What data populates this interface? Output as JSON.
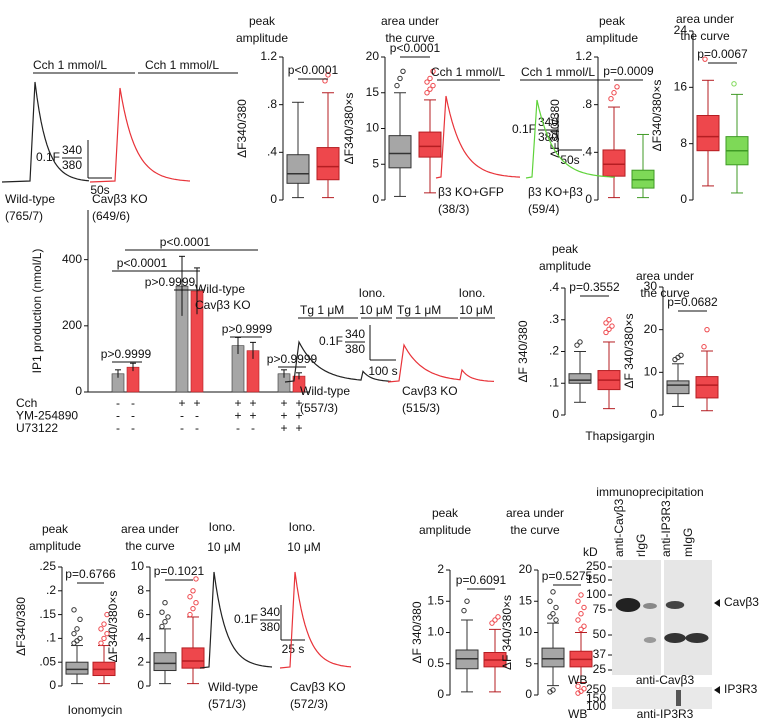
{
  "chart_data": [
    {
      "type": "box",
      "title": [
        "peak",
        "amplitude"
      ],
      "ylabel": "ΔF340/380",
      "ylim": [
        0,
        1.2
      ],
      "yticks": [
        0,
        {
          "value": 0.4,
          "label": ".4"
        },
        {
          "value": 0.8,
          "label": ".8"
        },
        {
          "value": 1.2,
          "label": "1.2"
        }
      ],
      "p_value": "p<0.0001",
      "series": [
        {
          "color": "#a6a6a6",
          "whisker_low": 0.02,
          "q1": 0.14,
          "median": 0.22,
          "q3": 0.38,
          "whisker_high": 0.82,
          "outliers": []
        },
        {
          "color": "#ee474c",
          "whisker_low": 0.02,
          "q1": 0.17,
          "median": 0.28,
          "q3": 0.44,
          "whisker_high": 0.9,
          "outliers": [
            1.0,
            1.05
          ]
        }
      ]
    },
    {
      "type": "box",
      "title": [
        "area under",
        "the curve"
      ],
      "ylabel": "ΔF340/380×s",
      "ylim": [
        0,
        20
      ],
      "yticks": [
        0,
        5,
        10,
        15,
        20
      ],
      "p_value": "p<0.0001",
      "series": [
        {
          "color": "#a6a6a6",
          "whisker_low": 0.5,
          "q1": 4.5,
          "median": 6.5,
          "q3": 9,
          "whisker_high": 15,
          "outliers": [
            16,
            17,
            18
          ]
        },
        {
          "color": "#ee474c",
          "whisker_low": 1,
          "q1": 6,
          "median": 7.5,
          "q3": 9.5,
          "whisker_high": 14,
          "outliers": [
            15,
            15.5,
            16,
            16.5,
            17,
            18
          ]
        }
      ]
    },
    {
      "type": "box",
      "title": [
        "peak",
        "amplitude"
      ],
      "ylabel": "ΔF340/380",
      "ylim": [
        0,
        1.2
      ],
      "yticks": [
        0,
        {
          "value": 0.4,
          "label": ".4"
        },
        {
          "value": 0.8,
          "label": ".8"
        },
        {
          "value": 1.2,
          "label": "1.2"
        }
      ],
      "p_value": "p=0.0009",
      "series": [
        {
          "color": "#ee474c",
          "whisker_low": 0.02,
          "q1": 0.2,
          "median": 0.3,
          "q3": 0.42,
          "whisker_high": 0.78,
          "outliers": [
            0.85,
            0.9,
            0.95
          ]
        },
        {
          "color": "#7ed957",
          "whisker_low": 0.02,
          "q1": 0.1,
          "median": 0.17,
          "q3": 0.25,
          "whisker_high": 0.55,
          "outliers": []
        }
      ]
    },
    {
      "type": "box",
      "title": [
        "area under",
        "the curve"
      ],
      "ylabel": "ΔF340/380×s",
      "ylim": [
        0,
        24
      ],
      "yticks": [
        0,
        8,
        16,
        24
      ],
      "p_value": "p=0.0067",
      "series": [
        {
          "color": "#ee474c",
          "whisker_low": 2,
          "q1": 7,
          "median": 9,
          "q3": 12,
          "whisker_high": 17,
          "outliers": [
            20
          ]
        },
        {
          "color": "#7ed957",
          "whisker_low": 1,
          "q1": 5,
          "median": 7,
          "q3": 9,
          "whisker_high": 15,
          "outliers": [
            16.5
          ]
        }
      ]
    },
    {
      "type": "bar",
      "ylabel": "IP1 production (nmol/L)",
      "ylim": [
        0,
        550
      ],
      "yticks": [
        0,
        200,
        400
      ],
      "series": [
        {
          "name": "Wild-type",
          "color": "#a6a6a6",
          "values": [
            55,
            320,
            140,
            55
          ],
          "errors": [
            12,
            90,
            25,
            12
          ]
        },
        {
          "name": "Cavβ3 KO",
          "color": "#ee474c",
          "values": [
            75,
            305,
            125,
            48
          ],
          "errors": [
            12,
            70,
            25,
            10
          ]
        }
      ],
      "annotations": [
        "p>0.9999",
        "p<0.0001",
        "p>0.9999",
        "p<0.0001",
        "p>0.9999",
        "p>0.9999"
      ],
      "conditions": [
        {
          "label": "Cch",
          "marks": [
            "-",
            "-",
            "+",
            "+",
            "+",
            "+",
            "+",
            "+"
          ]
        },
        {
          "label": "YM-254890",
          "marks": [
            "-",
            "-",
            "-",
            "-",
            "+",
            "+",
            "+",
            "+"
          ]
        },
        {
          "label": "U73122",
          "marks": [
            "-",
            "-",
            "-",
            "-",
            "-",
            "-",
            "+",
            "+"
          ]
        }
      ]
    },
    {
      "type": "box",
      "title": [
        "peak",
        "amplitude"
      ],
      "ylabel": "ΔF 340/380",
      "ylim": [
        0,
        0.4
      ],
      "yticks": [
        0,
        {
          "value": 0.1,
          "label": ".1"
        },
        {
          "value": 0.2,
          "label": ".2"
        },
        {
          "value": 0.3,
          "label": ".3"
        },
        {
          "value": 0.4,
          "label": ".4"
        }
      ],
      "p_value": "p=0.3552",
      "series": [
        {
          "color": "#a6a6a6",
          "whisker_low": 0.04,
          "q1": 0.1,
          "median": 0.11,
          "q3": 0.13,
          "whisker_high": 0.2,
          "outliers": [
            0.22,
            0.23
          ]
        },
        {
          "color": "#ee474c",
          "whisker_low": 0.02,
          "q1": 0.08,
          "median": 0.11,
          "q3": 0.14,
          "whisker_high": 0.23,
          "outliers": [
            0.26,
            0.27,
            0.28,
            0.29,
            0.3
          ]
        }
      ]
    },
    {
      "type": "box",
      "title": [
        "area under",
        "the curve"
      ],
      "ylabel": "ΔF 340/380×s",
      "xlabel": "Thapsigargin",
      "ylim": [
        0,
        30
      ],
      "yticks": [
        0,
        10,
        20,
        30
      ],
      "p_value": "p=0.0682",
      "series": [
        {
          "color": "#a6a6a6",
          "whisker_low": 2,
          "q1": 5,
          "median": 7,
          "q3": 8,
          "whisker_high": 12,
          "outliers": [
            13,
            13.5,
            14
          ]
        },
        {
          "color": "#ee474c",
          "whisker_low": 1,
          "q1": 4,
          "median": 7,
          "q3": 9,
          "whisker_high": 15,
          "outliers": [
            16,
            20
          ]
        }
      ]
    },
    {
      "type": "box",
      "title": [
        "peak",
        "amplitude"
      ],
      "ylabel": "ΔF340/380",
      "ylim": [
        0,
        0.25
      ],
      "yticks": [
        0,
        {
          "value": 0.05,
          "label": ".05"
        },
        {
          "value": 0.1,
          "label": ".1"
        },
        {
          "value": 0.15,
          "label": ".15"
        },
        {
          "value": 0.2,
          "label": ".2"
        },
        {
          "value": 0.25,
          "label": ".25"
        }
      ],
      "p_value": "p=0.6766",
      "series": [
        {
          "color": "#a6a6a6",
          "whisker_low": 0.005,
          "q1": 0.025,
          "median": 0.035,
          "q3": 0.05,
          "whisker_high": 0.085,
          "outliers": [
            0.09,
            0.095,
            0.1,
            0.11,
            0.12,
            0.14,
            0.16
          ]
        },
        {
          "color": "#ee474c",
          "whisker_low": 0.005,
          "q1": 0.022,
          "median": 0.035,
          "q3": 0.05,
          "whisker_high": 0.085,
          "outliers": [
            0.09,
            0.1,
            0.11,
            0.12,
            0.13,
            0.15
          ]
        }
      ]
    },
    {
      "type": "box",
      "title": [
        "area under",
        "the curve"
      ],
      "ylabel": "ΔF340/380×s",
      "xlabel": "Ionomycin",
      "ylim": [
        0,
        10
      ],
      "yticks": [
        0,
        2,
        4,
        6,
        8,
        10
      ],
      "p_value": "p=0.1021",
      "series": [
        {
          "color": "#a6a6a6",
          "whisker_low": 0.2,
          "q1": 1.3,
          "median": 1.9,
          "q3": 2.8,
          "whisker_high": 4.8,
          "outliers": [
            5,
            5.4,
            5.8,
            6.2,
            7
          ]
        },
        {
          "color": "#ee474c",
          "whisker_low": 0.2,
          "q1": 1.5,
          "median": 2.1,
          "q3": 3.2,
          "whisker_high": 5.8,
          "outliers": [
            6,
            6.5,
            7,
            7.5,
            8,
            9
          ]
        }
      ]
    },
    {
      "type": "box",
      "title": [
        "peak",
        "amplitude"
      ],
      "ylabel": "ΔF 340/380",
      "ylim": [
        0,
        2
      ],
      "yticks": [
        0,
        0.5,
        {
          "value": 1,
          "label": "1.0"
        },
        1.5,
        2
      ],
      "p_value": "p=0.6091",
      "series": [
        {
          "color": "#a6a6a6",
          "whisker_low": 0.05,
          "q1": 0.42,
          "median": 0.58,
          "q3": 0.72,
          "whisker_high": 1.2,
          "outliers": [
            1.35,
            1.5
          ]
        },
        {
          "color": "#ee474c",
          "whisker_low": 0.05,
          "q1": 0.45,
          "median": 0.56,
          "q3": 0.68,
          "whisker_high": 1.05,
          "outliers": [
            1.15,
            1.2,
            1.25
          ]
        }
      ]
    },
    {
      "type": "box",
      "title": [
        "area under",
        "the curve"
      ],
      "ylabel": "ΔF 340/380×s",
      "ylim": [
        0,
        20
      ],
      "yticks": [
        0,
        5,
        10,
        15,
        20
      ],
      "p_value": "p=0.5275",
      "series": [
        {
          "color": "#a6a6a6",
          "whisker_low": 1.5,
          "q1": 4.5,
          "median": 5.8,
          "q3": 7.5,
          "whisker_high": 11.5,
          "outliers": [
            0.5,
            0.8,
            12,
            12.5,
            13,
            14,
            15,
            16.5
          ]
        },
        {
          "color": "#ee474c",
          "whisker_low": 2,
          "q1": 4.5,
          "median": 5.7,
          "q3": 7,
          "whisker_high": 10,
          "outliers": [
            0.3,
            0.6,
            1,
            1.4,
            10.5,
            11,
            12,
            13,
            14,
            15,
            16
          ]
        }
      ]
    }
  ],
  "traces": [
    {
      "stimuli": [
        "Cch 1 mmol/L",
        "Cch 1 mmol/L"
      ],
      "scale": {
        "y": "0.1F",
        "ratio_top": "340",
        "ratio_bottom": "380",
        "x": "50s"
      },
      "groups": [
        {
          "name": "Wild-type",
          "n": "(765/7)",
          "color": "#222222"
        },
        {
          "name": "Cavβ3 KO",
          "n": "(649/6)",
          "color": "#e8343a"
        }
      ]
    },
    {
      "stimuli": [
        "Cch 1 mmol/L",
        "Cch 1 mmol/L"
      ],
      "scale": {
        "y": "0.1F",
        "ratio_top": "340",
        "ratio_bottom": "380",
        "x": "50s"
      },
      "groups": [
        {
          "name": "β3 KO+GFP",
          "n": "(38/3)",
          "color": "#e8343a"
        },
        {
          "name": "β3 KO+β3",
          "n": "(59/4)",
          "color": "#5fd33a"
        }
      ]
    },
    {
      "stimuli": [
        "Tg 1 μM",
        "Iono.",
        "10 μM",
        "Tg 1 μM",
        "Iono.",
        "10 μM"
      ],
      "scale": {
        "y": "0.1F",
        "ratio_top": "340",
        "ratio_bottom": "380",
        "x": "100 s"
      },
      "groups": [
        {
          "name": "Wild-type",
          "n": "(557/3)",
          "color": "#222222"
        },
        {
          "name": "Cavβ3 KO",
          "n": "(515/3)",
          "color": "#e8343a"
        }
      ]
    },
    {
      "stimuli": [
        "Iono.",
        "10 μM",
        "Iono.",
        "10 μM"
      ],
      "scale": {
        "y": "0.1F",
        "ratio_top": "340",
        "ratio_bottom": "380",
        "x": "25 s"
      },
      "groups": [
        {
          "name": "Wild-type",
          "n": "(571/3)",
          "color": "#222222"
        },
        {
          "name": "Cavβ3 KO",
          "n": "(572/3)",
          "color": "#e8343a"
        }
      ]
    }
  ],
  "blot": {
    "title": "immunoprecipitation",
    "kd": "kD",
    "lanes": [
      "anti-Cavβ3",
      "rIgG",
      "anti-IP3R3",
      "mIgG"
    ],
    "mw1": [
      "250",
      "150",
      "100",
      "75",
      "50",
      "37",
      "25"
    ],
    "band1": "Cavβ3",
    "wb1": "WB",
    "ab1": "anti-Cavβ3",
    "mw2": [
      "250",
      "150",
      "100"
    ],
    "band2": "IP3R3",
    "wb2": "WB",
    "ab2": "anti-IP3R3"
  }
}
